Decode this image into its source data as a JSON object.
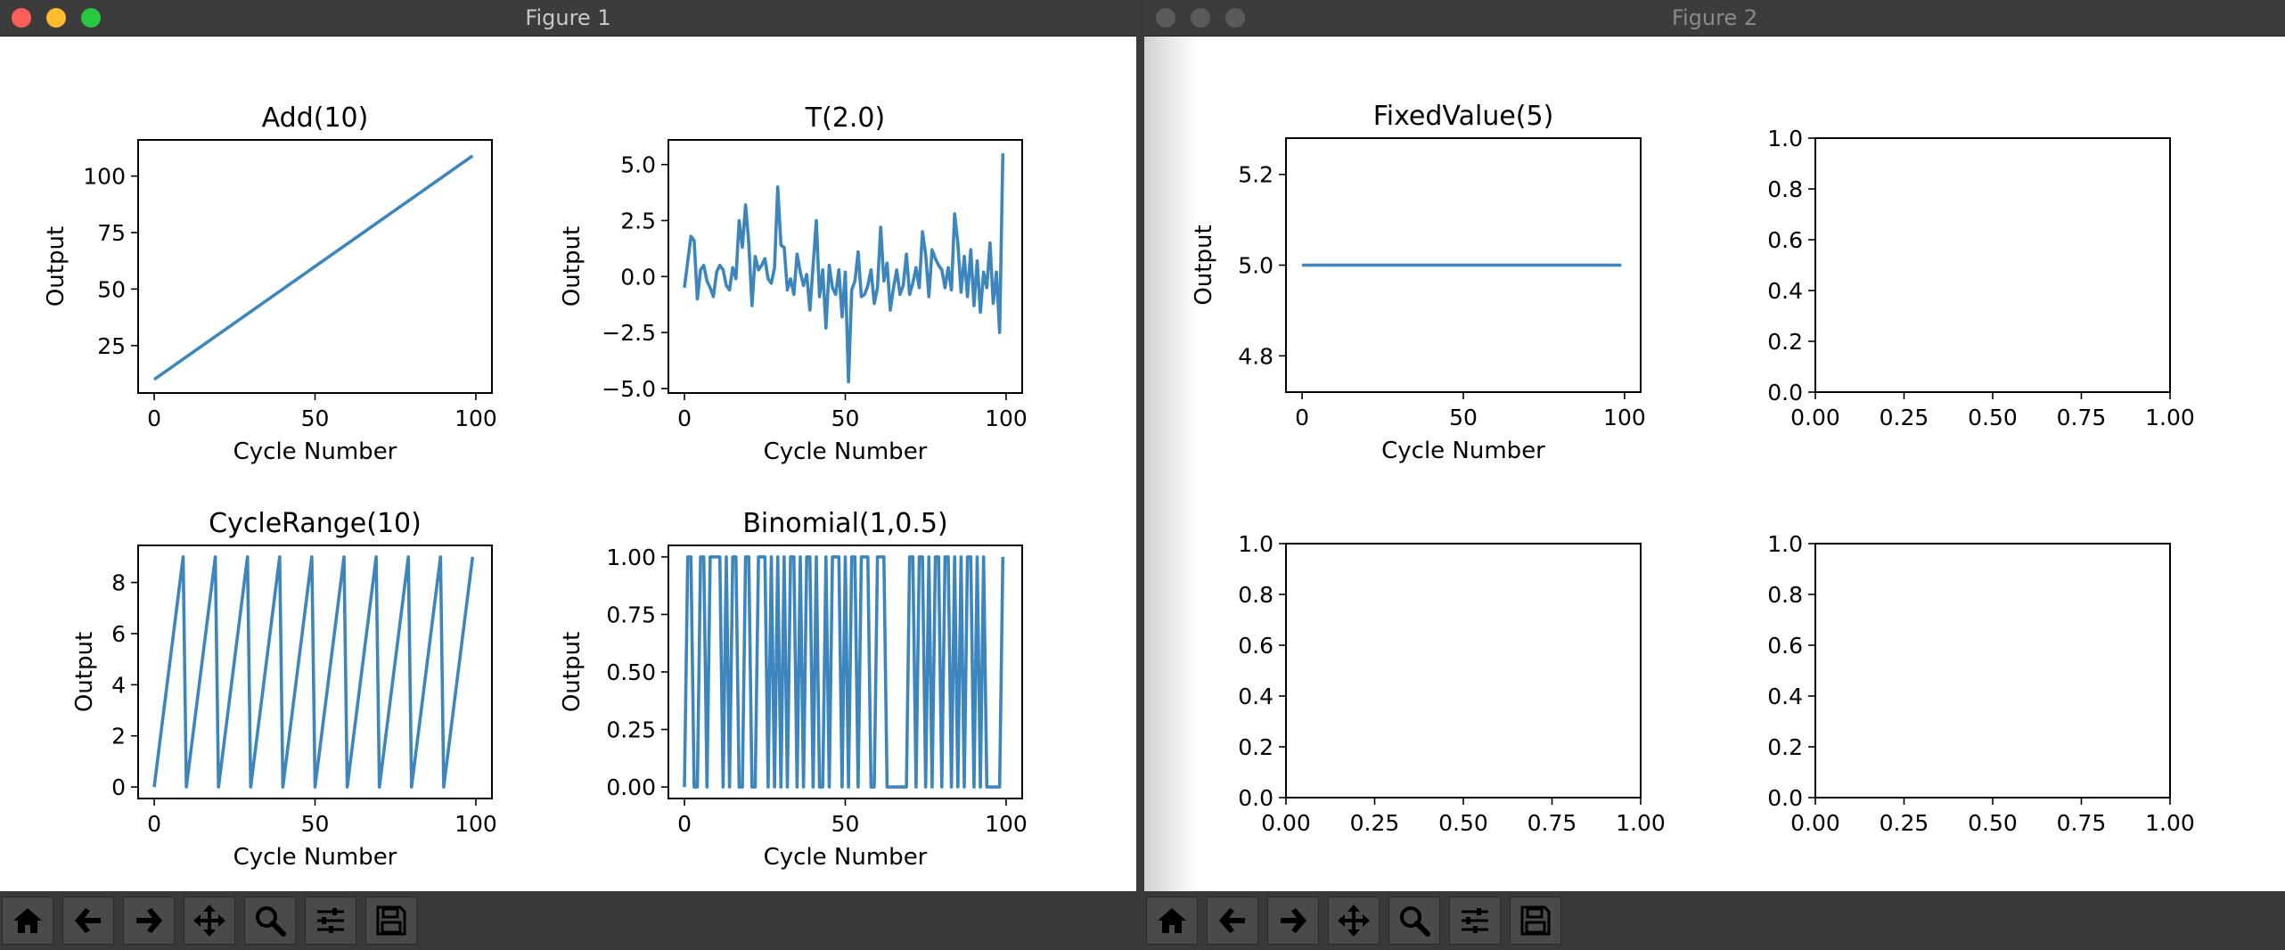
{
  "windows": [
    {
      "title": "Figure 1"
    },
    {
      "title": "Figure 2"
    }
  ],
  "toolbar": {
    "icons": [
      "home-icon",
      "back-arrow-icon",
      "forward-arrow-icon",
      "pan-icon",
      "zoom-icon",
      "configure-subplots-icon",
      "save-icon"
    ]
  },
  "colors": {
    "line": "#3d86bd",
    "titlebar": "#3c3c3c",
    "toolbar": "#3a3a3a",
    "close": "#fe5f57",
    "minimize": "#febc2e",
    "maximize": "#28c840"
  },
  "chart_data": [
    {
      "type": "line",
      "title": "Add(10)",
      "xlabel": "Cycle Number",
      "ylabel": "Output",
      "xlim": [
        -5,
        105
      ],
      "ylim": [
        4,
        116
      ],
      "xticks": [
        0,
        50,
        100
      ],
      "xtick_labels": [
        "0",
        "50",
        "100"
      ],
      "yticks": [
        25,
        50,
        75,
        100
      ],
      "ytick_labels": [
        "25",
        "50",
        "75",
        "100"
      ],
      "series": [
        {
          "x": [
            0,
            99
          ],
          "y": [
            10,
            109
          ]
        }
      ]
    },
    {
      "type": "line",
      "title": "T(2.0)",
      "xlabel": "Cycle Number",
      "ylabel": "Output",
      "xlim": [
        -5,
        105
      ],
      "ylim": [
        -5.2,
        6.1
      ],
      "xticks": [
        0,
        50,
        100
      ],
      "xtick_labels": [
        "0",
        "50",
        "100"
      ],
      "yticks": [
        -5,
        -2.5,
        0,
        2.5,
        5
      ],
      "ytick_labels": [
        "−5.0",
        "−2.5",
        "0.0",
        "2.5",
        "5.0"
      ],
      "series": [
        {
          "x": [
            0,
            2,
            3,
            4,
            5,
            6,
            7,
            8,
            9,
            10,
            11,
            12,
            13,
            14,
            15,
            16,
            17,
            18,
            19,
            20,
            21,
            22,
            23,
            24,
            25,
            26,
            27,
            28,
            29,
            30,
            31,
            32,
            33,
            34,
            35,
            36,
            37,
            38,
            39,
            40,
            41,
            42,
            43,
            44,
            45,
            46,
            47,
            48,
            49,
            50,
            51,
            52,
            53,
            54,
            55,
            56,
            57,
            58,
            59,
            60,
            61,
            62,
            63,
            64,
            65,
            66,
            67,
            68,
            69,
            70,
            71,
            72,
            73,
            74,
            75,
            76,
            77,
            78,
            79,
            80,
            81,
            82,
            83,
            84,
            85,
            86,
            87,
            88,
            89,
            90,
            91,
            92,
            93,
            94,
            95,
            96,
            97,
            98,
            99
          ],
          "y": [
            -0.5,
            1.8,
            1.6,
            -1.0,
            0.3,
            0.5,
            -0.2,
            -0.5,
            -0.9,
            0.2,
            0.5,
            0.3,
            -0.4,
            -0.6,
            0.4,
            -0.1,
            2.5,
            1.3,
            3.2,
            1.5,
            -1.3,
            0.9,
            0.3,
            0.5,
            0.8,
            -0.1,
            -0.3,
            0.4,
            4.0,
            1.4,
            1.3,
            -0.6,
            -0.1,
            -0.8,
            1.0,
            0.2,
            -0.4,
            0.1,
            -1.5,
            0.5,
            2.5,
            -0.9,
            0.3,
            -2.3,
            0.5,
            -0.5,
            -0.8,
            0.3,
            -1.8,
            0.2,
            -4.7,
            -0.6,
            -0.2,
            1.1,
            -0.9,
            -0.8,
            -0.4,
            0.3,
            -1.2,
            -0.5,
            2.2,
            -0.2,
            0.6,
            -1.5,
            -0.5,
            0.3,
            -0.8,
            -0.4,
            1.0,
            -0.8,
            -0.3,
            0.4,
            -0.5,
            2.0,
            1.0,
            -0.9,
            1.2,
            0.8,
            0.5,
            0.3,
            -0.5,
            0.4,
            -0.6,
            2.8,
            1.5,
            -0.7,
            0.9,
            -0.9,
            1.2,
            -1.3,
            0.7,
            -1.6,
            0.2,
            -0.5,
            1.5,
            -1.2,
            0.2,
            -2.5,
            5.5
          ]
        }
      ]
    },
    {
      "type": "line",
      "title": "CycleRange(10)",
      "xlabel": "Cycle Number",
      "ylabel": "Output",
      "xlim": [
        -5,
        105
      ],
      "ylim": [
        -0.45,
        9.45
      ],
      "xticks": [
        0,
        50,
        100
      ],
      "xtick_labels": [
        "0",
        "50",
        "100"
      ],
      "yticks": [
        0,
        2,
        4,
        6,
        8
      ],
      "ytick_labels": [
        "0",
        "2",
        "4",
        "6",
        "8"
      ],
      "series": [
        {
          "x": [
            0,
            9,
            10,
            19,
            20,
            29,
            30,
            39,
            40,
            49,
            50,
            59,
            60,
            69,
            70,
            79,
            80,
            89,
            90,
            99
          ],
          "y": [
            0,
            9,
            0,
            9,
            0,
            9,
            0,
            9,
            0,
            9,
            0,
            9,
            0,
            9,
            0,
            9,
            0,
            9,
            0,
            9
          ]
        }
      ]
    },
    {
      "type": "line",
      "title": "Binomial(1,0.5)",
      "xlabel": "Cycle Number",
      "ylabel": "Output",
      "xlim": [
        -5,
        105
      ],
      "ylim": [
        -0.05,
        1.05
      ],
      "xticks": [
        0,
        50,
        100
      ],
      "xtick_labels": [
        "0",
        "50",
        "100"
      ],
      "yticks": [
        0,
        0.25,
        0.5,
        0.75,
        1
      ],
      "ytick_labels": [
        "0.00",
        "0.25",
        "0.50",
        "0.75",
        "1.00"
      ],
      "series": [
        {
          "x": [
            0,
            1,
            2,
            3,
            4,
            5,
            6,
            7,
            8,
            9,
            10,
            11,
            12,
            13,
            14,
            15,
            16,
            17,
            18,
            19,
            20,
            21,
            22,
            23,
            24,
            25,
            26,
            27,
            28,
            29,
            30,
            31,
            32,
            33,
            34,
            35,
            36,
            37,
            38,
            39,
            40,
            41,
            42,
            43,
            44,
            45,
            46,
            47,
            48,
            49,
            50,
            51,
            52,
            53,
            54,
            55,
            56,
            57,
            58,
            59,
            60,
            61,
            62,
            63,
            64,
            65,
            66,
            67,
            68,
            69,
            70,
            71,
            72,
            73,
            74,
            75,
            76,
            77,
            78,
            79,
            80,
            81,
            82,
            83,
            84,
            85,
            86,
            87,
            88,
            89,
            90,
            91,
            92,
            93,
            94,
            95,
            96,
            97,
            98,
            99
          ],
          "y": [
            0,
            1,
            1,
            0,
            0,
            1,
            1,
            0,
            1,
            1,
            1,
            1,
            0,
            1,
            0,
            1,
            1,
            0,
            0,
            1,
            1,
            0,
            0,
            1,
            1,
            1,
            0,
            1,
            0,
            1,
            0,
            1,
            0,
            1,
            1,
            0,
            1,
            0,
            1,
            1,
            0,
            1,
            0,
            0,
            1,
            0,
            1,
            1,
            1,
            0,
            1,
            0,
            1,
            1,
            0,
            1,
            1,
            1,
            0,
            0,
            1,
            1,
            1,
            0,
            0,
            0,
            0,
            0,
            0,
            0,
            1,
            1,
            0,
            1,
            1,
            0,
            1,
            0,
            1,
            1,
            0,
            1,
            1,
            0,
            1,
            0,
            1,
            0,
            1,
            1,
            0,
            1,
            0,
            1,
            0,
            0,
            0,
            0,
            0,
            1
          ]
        }
      ]
    },
    {
      "type": "line",
      "title": "FixedValue(5)",
      "xlabel": "Cycle Number",
      "ylabel": "Output",
      "xlim": [
        -5,
        105
      ],
      "ylim": [
        4.72,
        5.28
      ],
      "xticks": [
        0,
        50,
        100
      ],
      "xtick_labels": [
        "0",
        "50",
        "100"
      ],
      "yticks": [
        4.8,
        5.0,
        5.2
      ],
      "ytick_labels": [
        "4.8",
        "5.0",
        "5.2"
      ],
      "series": [
        {
          "x": [
            0,
            99
          ],
          "y": [
            5,
            5
          ]
        }
      ]
    },
    {
      "type": "line",
      "title": "",
      "xlabel": "",
      "ylabel": "",
      "xlim": [
        0,
        1
      ],
      "ylim": [
        0,
        1
      ],
      "xticks": [
        0,
        0.25,
        0.5,
        0.75,
        1
      ],
      "xtick_labels": [
        "0.00",
        "0.25",
        "0.50",
        "0.75",
        "1.00"
      ],
      "yticks": [
        0,
        0.2,
        0.4,
        0.6,
        0.8,
        1
      ],
      "ytick_labels": [
        "0.0",
        "0.2",
        "0.4",
        "0.6",
        "0.8",
        "1.0"
      ],
      "series": []
    },
    {
      "type": "line",
      "title": "",
      "xlabel": "",
      "ylabel": "",
      "xlim": [
        0,
        1
      ],
      "ylim": [
        0,
        1
      ],
      "xticks": [
        0,
        0.25,
        0.5,
        0.75,
        1
      ],
      "xtick_labels": [
        "0.00",
        "0.25",
        "0.50",
        "0.75",
        "1.00"
      ],
      "yticks": [
        0,
        0.2,
        0.4,
        0.6,
        0.8,
        1
      ],
      "ytick_labels": [
        "0.0",
        "0.2",
        "0.4",
        "0.6",
        "0.8",
        "1.0"
      ],
      "series": []
    },
    {
      "type": "line",
      "title": "",
      "xlabel": "",
      "ylabel": "",
      "xlim": [
        0,
        1
      ],
      "ylim": [
        0,
        1
      ],
      "xticks": [
        0,
        0.25,
        0.5,
        0.75,
        1
      ],
      "xtick_labels": [
        "0.00",
        "0.25",
        "0.50",
        "0.75",
        "1.00"
      ],
      "yticks": [
        0,
        0.2,
        0.4,
        0.6,
        0.8,
        1
      ],
      "ytick_labels": [
        "0.0",
        "0.2",
        "0.4",
        "0.6",
        "0.8",
        "1.0"
      ],
      "series": []
    }
  ]
}
